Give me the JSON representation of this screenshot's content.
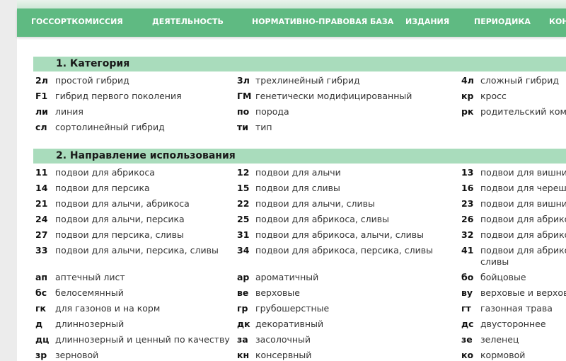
{
  "nav": [
    "ГОССОРТКОМИССИЯ",
    "ДЕЯТЕЛЬНОСТЬ",
    "НОРМАТИВНО-ПРАВОВАЯ БАЗА",
    "ИЗДАНИЯ",
    "ПЕРИОДИКА",
    "КОН"
  ],
  "sections": [
    {
      "title": "1. Категория",
      "rows": [
        [
          {
            "code": "2л",
            "text": "простой гибрид"
          },
          {
            "code": "3л",
            "text": "трехлинейный гибрид"
          },
          {
            "code": "4л",
            "text": "сложный гибрид"
          }
        ],
        [
          {
            "code": "F1",
            "text": "гибрид первого поколения"
          },
          {
            "code": "ГМ",
            "text": "генетически модифицированный"
          },
          {
            "code": "кр",
            "text": "кросс"
          }
        ],
        [
          {
            "code": "ли",
            "text": "линия"
          },
          {
            "code": "по",
            "text": "порода"
          },
          {
            "code": "рк",
            "text": "родительский комп"
          }
        ],
        [
          {
            "code": "сл",
            "text": "сортолинейный гибрид"
          },
          {
            "code": "ти",
            "text": "тип"
          }
        ]
      ]
    },
    {
      "title": "2. Направление использования",
      "rows": [
        [
          {
            "code": "11",
            "text": "подвои для абрикоса"
          },
          {
            "code": "12",
            "text": "подвои для алычи"
          },
          {
            "code": "13",
            "text": "подвои для вишни"
          }
        ],
        [
          {
            "code": "14",
            "text": "подвои для персика"
          },
          {
            "code": "15",
            "text": "подвои для сливы"
          },
          {
            "code": "16",
            "text": "подвои для черешн"
          }
        ],
        [
          {
            "code": "21",
            "text": "подвои для алычи, абрикоса"
          },
          {
            "code": "22",
            "text": "подвои для алычи, сливы"
          },
          {
            "code": "23",
            "text": "подвои для вишни,"
          }
        ],
        [
          {
            "code": "24",
            "text": "подвои для алычи, персика"
          },
          {
            "code": "25",
            "text": "подвои для абрикоса, сливы"
          },
          {
            "code": "26",
            "text": "подвои для абрикос"
          }
        ],
        [
          {
            "code": "27",
            "text": "подвои для персика, сливы"
          },
          {
            "code": "31",
            "text": "подвои для абрикоса, алычи, сливы"
          },
          {
            "code": "32",
            "text": "подвои для абрико"
          }
        ],
        [
          {
            "code": "33",
            "text": "подвои для алычи, персика, сливы"
          },
          {
            "code": "34",
            "text": "подвои для абрикоса, персика, сливы"
          },
          {
            "code": "41",
            "text": "подвои для абрикос",
            "text_2": "сливы"
          }
        ],
        [
          {
            "code": "ап",
            "text": "аптечный лист"
          },
          {
            "code": "ар",
            "text": "ароматичный"
          },
          {
            "code": "бо",
            "text": "бойцовые"
          }
        ],
        [
          {
            "code": "бс",
            "text": "белосемянный"
          },
          {
            "code": "ве",
            "text": "верховые"
          },
          {
            "code": "ву",
            "text": "верховые и верховс"
          }
        ],
        [
          {
            "code": "гк",
            "text": "для газонов и на корм"
          },
          {
            "code": "гр",
            "text": "грубошерстные"
          },
          {
            "code": "гт",
            "text": "газонная трава"
          }
        ],
        [
          {
            "code": "д",
            "text": "длиннозерный"
          },
          {
            "code": "дк",
            "text": "декоративный"
          },
          {
            "code": "дс",
            "text": "двустороннее"
          }
        ],
        [
          {
            "code": "дц",
            "text": "длиннозерный и ценный по качеству"
          },
          {
            "code": "за",
            "text": "засолочный"
          },
          {
            "code": "зе",
            "text": "зеленец"
          }
        ],
        [
          {
            "code": "зр",
            "text": "зерновой"
          },
          {
            "code": "кн",
            "text": "консервный"
          },
          {
            "code": "ко",
            "text": "кормовой"
          }
        ]
      ]
    }
  ]
}
